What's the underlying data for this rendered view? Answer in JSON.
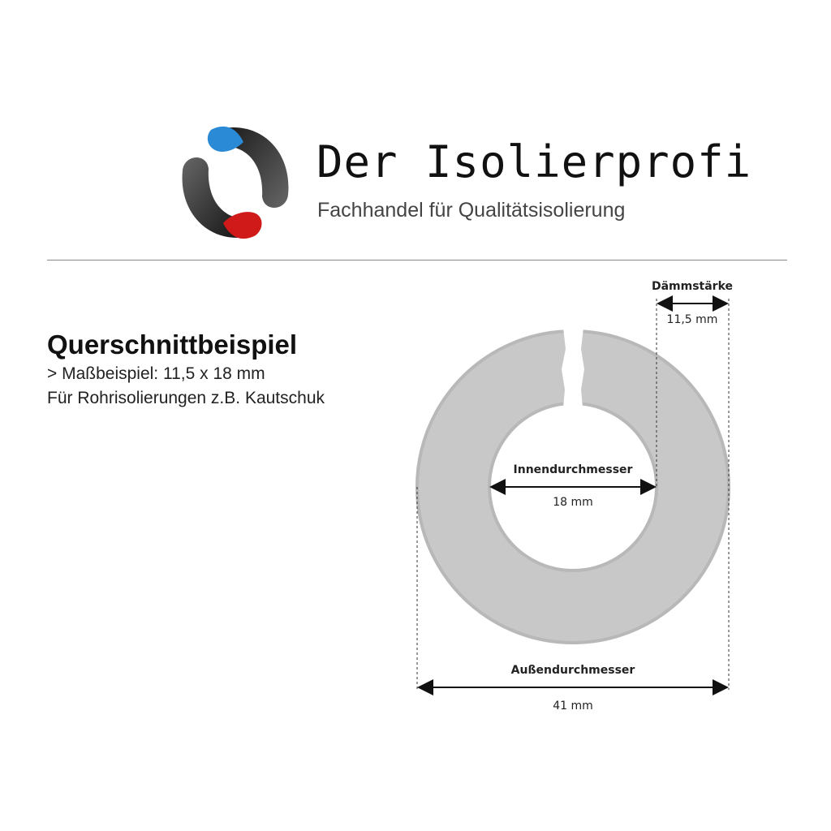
{
  "logo": {
    "brand": "Der Isolierprofi",
    "tagline": "Fachhandel für Qualitätsisolierung",
    "colors": {
      "blue": "#2a8ad6",
      "red": "#d01a1a",
      "dark": "#333333"
    }
  },
  "intro": {
    "heading": "Querschnittbeispiel",
    "line1": "> Maßbeispiel: 11,5 x 18 mm",
    "line2": "Für Rohrisolierungen z.B. Kautschuk"
  },
  "diagram": {
    "ring_color": "#c8c8c8",
    "thickness": {
      "label": "Dämmstärke",
      "value": "11,5 mm"
    },
    "inner": {
      "label": "Innendurchmesser",
      "value": "18 mm"
    },
    "outer": {
      "label": "Außendurchmesser",
      "value": "41 mm"
    }
  }
}
